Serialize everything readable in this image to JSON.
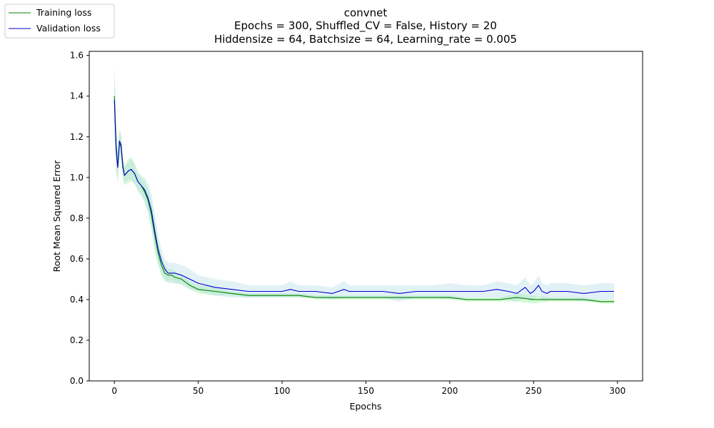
{
  "chart_data": {
    "type": "line",
    "title": "convnet",
    "subtitle": [
      "Epochs = 300, Shuffled_CV = False, History = 20",
      "Hiddensize = 64, Batchsize = 64, Learning_rate = 0.005"
    ],
    "xlabel": "Epochs",
    "ylabel": "Root Mean Squared Error",
    "xlim": [
      -15,
      315
    ],
    "ylim": [
      0,
      1.62
    ],
    "xticks": [
      0,
      50,
      100,
      150,
      200,
      250,
      300
    ],
    "yticks": [
      0.0,
      0.2,
      0.4,
      0.6,
      0.8,
      1.0,
      1.2,
      1.4,
      1.6
    ],
    "ytick_labels": [
      "0.0",
      "0.2",
      "0.4",
      "0.6",
      "0.8",
      "1.0",
      "1.2",
      "1.4",
      "1.6"
    ],
    "grid": false,
    "legend_position": "top-left, outside plot area",
    "series": [
      {
        "name": "Training loss",
        "color": "#008000",
        "band_color": "#90ee90",
        "x": [
          0,
          1,
          2,
          3,
          4,
          5,
          6,
          7,
          8,
          10,
          12,
          14,
          16,
          18,
          20,
          22,
          24,
          26,
          28,
          30,
          32,
          34,
          36,
          40,
          45,
          50,
          60,
          70,
          80,
          90,
          100,
          110,
          120,
          130,
          140,
          150,
          160,
          170,
          180,
          190,
          200,
          210,
          220,
          230,
          240,
          250,
          260,
          270,
          280,
          290,
          298
        ],
        "values": [
          1.4,
          1.16,
          1.05,
          1.17,
          1.15,
          1.05,
          1.01,
          1.02,
          1.03,
          1.04,
          1.02,
          0.98,
          0.96,
          0.93,
          0.89,
          0.82,
          0.72,
          0.63,
          0.57,
          0.53,
          0.52,
          0.52,
          0.51,
          0.5,
          0.47,
          0.45,
          0.44,
          0.43,
          0.42,
          0.42,
          0.42,
          0.42,
          0.41,
          0.41,
          0.41,
          0.41,
          0.41,
          0.41,
          0.41,
          0.41,
          0.41,
          0.4,
          0.4,
          0.4,
          0.41,
          0.4,
          0.4,
          0.4,
          0.4,
          0.39,
          0.39
        ],
        "band_half_width": [
          0.17,
          0.12,
          0.08,
          0.07,
          0.06,
          0.05,
          0.05,
          0.05,
          0.06,
          0.06,
          0.05,
          0.04,
          0.04,
          0.05,
          0.06,
          0.07,
          0.08,
          0.06,
          0.05,
          0.04,
          0.03,
          0.03,
          0.03,
          0.02,
          0.02,
          0.02,
          0.02,
          0.01,
          0.01,
          0.01,
          0.01,
          0.01,
          0.01,
          0.01,
          0.01,
          0.01,
          0.01,
          0.01,
          0.01,
          0.01,
          0.01,
          0.01,
          0.01,
          0.01,
          0.02,
          0.02,
          0.01,
          0.01,
          0.01,
          0.01,
          0.01
        ]
      },
      {
        "name": "Validation loss",
        "color": "#0000cc",
        "band_color": "#add8e6",
        "x": [
          0,
          1,
          2,
          3,
          4,
          5,
          6,
          7,
          8,
          10,
          12,
          14,
          16,
          18,
          20,
          22,
          24,
          26,
          28,
          30,
          32,
          34,
          36,
          40,
          45,
          50,
          60,
          70,
          80,
          90,
          100,
          105,
          110,
          120,
          130,
          137,
          140,
          150,
          160,
          170,
          180,
          190,
          200,
          210,
          220,
          228,
          235,
          240,
          245,
          248,
          250,
          253,
          255,
          258,
          260,
          270,
          280,
          290,
          298
        ],
        "values": [
          1.38,
          1.14,
          1.05,
          1.18,
          1.16,
          1.06,
          1.01,
          1.02,
          1.03,
          1.04,
          1.02,
          0.98,
          0.96,
          0.94,
          0.9,
          0.84,
          0.74,
          0.65,
          0.59,
          0.55,
          0.53,
          0.53,
          0.53,
          0.52,
          0.5,
          0.48,
          0.46,
          0.45,
          0.44,
          0.44,
          0.44,
          0.45,
          0.44,
          0.44,
          0.43,
          0.45,
          0.44,
          0.44,
          0.44,
          0.43,
          0.44,
          0.44,
          0.44,
          0.44,
          0.44,
          0.45,
          0.44,
          0.43,
          0.46,
          0.43,
          0.44,
          0.47,
          0.44,
          0.43,
          0.44,
          0.44,
          0.43,
          0.44,
          0.44
        ],
        "band_half_width": [
          0.15,
          0.11,
          0.06,
          0.05,
          0.05,
          0.04,
          0.04,
          0.04,
          0.04,
          0.05,
          0.05,
          0.05,
          0.05,
          0.06,
          0.07,
          0.08,
          0.08,
          0.07,
          0.06,
          0.05,
          0.05,
          0.05,
          0.05,
          0.05,
          0.05,
          0.04,
          0.04,
          0.04,
          0.03,
          0.03,
          0.03,
          0.04,
          0.03,
          0.03,
          0.03,
          0.04,
          0.03,
          0.03,
          0.03,
          0.04,
          0.03,
          0.03,
          0.04,
          0.03,
          0.03,
          0.04,
          0.04,
          0.04,
          0.05,
          0.04,
          0.04,
          0.05,
          0.04,
          0.04,
          0.04,
          0.04,
          0.04,
          0.04,
          0.04
        ]
      }
    ]
  }
}
